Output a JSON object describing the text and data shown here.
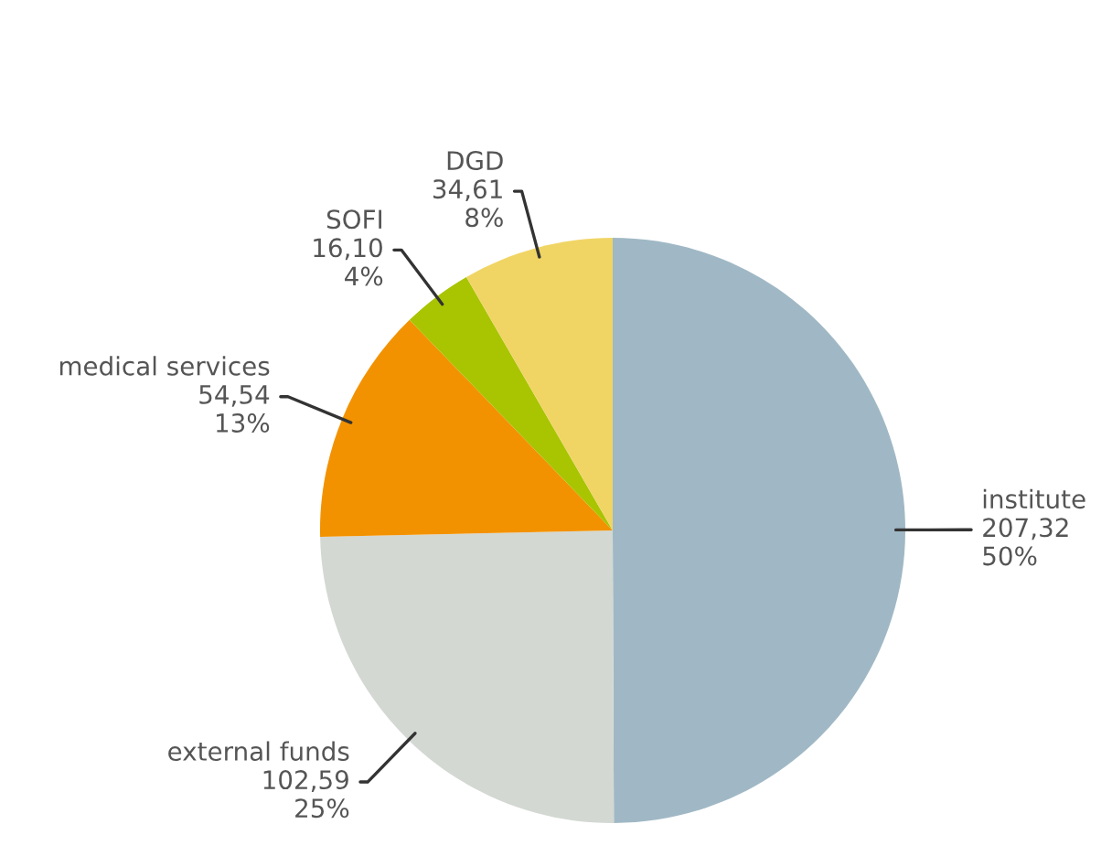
{
  "chart_data": {
    "type": "pie",
    "categories": [
      "institute",
      "external funds",
      "medical services",
      "SOFI",
      "DGD"
    ],
    "values": [
      207.32,
      102.59,
      54.54,
      16.1,
      34.61
    ],
    "value_labels": [
      "207,32\n50%",
      "102,59\n25%",
      "54,54\n13%",
      "16,10\n4%",
      "34,61\n8%"
    ],
    "colors": [
      "#a0b8c5",
      "#d3d8d3",
      "#f39200",
      "#a9c400",
      "#f0d565"
    ],
    "legend": false
  }
}
